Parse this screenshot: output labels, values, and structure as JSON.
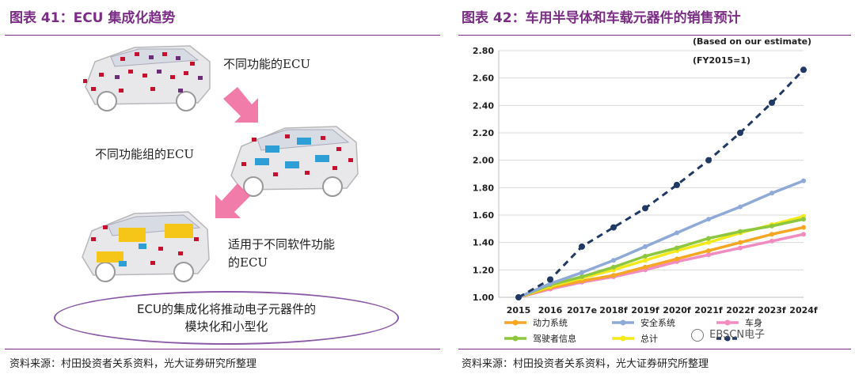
{
  "left": {
    "title": "图表 41：ECU 集成化趋势",
    "label_1": "不同功能的ECU",
    "label_2": "不同功能组的ECU",
    "label_3_line1": "适用于不同软件功能",
    "label_3_line2": "的ECU",
    "oval_line1": "ECU的集成化将推动电子元器件的",
    "oval_line2": "模块化和小型化",
    "source": "资料来源：村田投资者关系资料，光大证券研究所整理"
  },
  "right": {
    "title": "图表 42：车用半导体和车载元器件的销售预计",
    "source": "资料来源：村田投资者关系资料，光大证券研究所整理",
    "watermark": "EBSCN电子"
  },
  "chart_data": {
    "type": "line",
    "note_1": "(Based on our estimate)",
    "note_2": "(FY2015=1)",
    "categories": [
      "2015",
      "2016",
      "2017e",
      "2018f",
      "2019f",
      "2020f",
      "2021f",
      "2022f",
      "2023f",
      "2024f"
    ],
    "ylim": [
      1.0,
      2.8
    ],
    "yticks": [
      "1.00",
      "1.20",
      "1.40",
      "1.60",
      "1.80",
      "2.00",
      "2.20",
      "2.40",
      "2.60",
      "2.80"
    ],
    "grid": true,
    "legend_position": "bottom",
    "series": [
      {
        "name": "动力系统",
        "color": "#f5a623",
        "dash": false,
        "marker": true,
        "values": [
          1.0,
          1.07,
          1.12,
          1.16,
          1.22,
          1.28,
          1.34,
          1.4,
          1.46,
          1.51
        ]
      },
      {
        "name": "安全系统",
        "color": "#8fa9d8",
        "dash": false,
        "marker": true,
        "values": [
          1.0,
          1.1,
          1.18,
          1.27,
          1.37,
          1.47,
          1.57,
          1.66,
          1.76,
          1.85
        ]
      },
      {
        "name": "车身",
        "color": "#f28cc0",
        "dash": false,
        "marker": true,
        "values": [
          1.0,
          1.06,
          1.11,
          1.15,
          1.2,
          1.26,
          1.31,
          1.36,
          1.41,
          1.46
        ]
      },
      {
        "name": "驾驶者信息",
        "color": "#8dc63f",
        "dash": false,
        "marker": true,
        "values": [
          1.0,
          1.09,
          1.15,
          1.22,
          1.3,
          1.36,
          1.43,
          1.48,
          1.52,
          1.57
        ]
      },
      {
        "name": "总计",
        "color": "#f2ea1a",
        "dash": false,
        "marker": true,
        "values": [
          1.0,
          1.08,
          1.14,
          1.2,
          1.27,
          1.34,
          1.4,
          1.47,
          1.53,
          1.59
        ]
      },
      {
        "name": "",
        "color": "#1f3864",
        "dash": true,
        "marker": true,
        "values": [
          1.0,
          1.13,
          1.37,
          1.51,
          1.65,
          1.82,
          2.0,
          2.2,
          2.42,
          2.66
        ]
      }
    ]
  }
}
